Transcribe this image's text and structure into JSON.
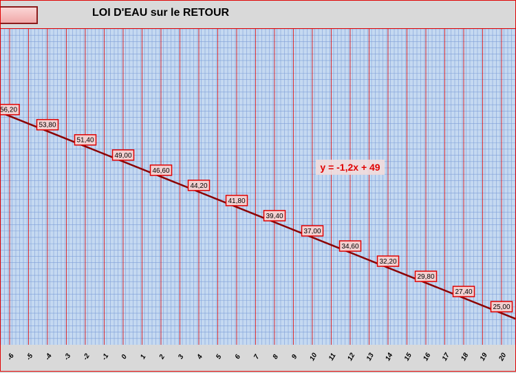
{
  "header": {
    "title": "LOI D'EAU sur le RETOUR"
  },
  "colors": {
    "line": "#8b0000",
    "plot_bg": "#c5d9f1",
    "major_grid": "#e00000",
    "minor_grid": "#7f9fd8",
    "label_bg": "#f2d0d0",
    "label_border": "#e00000",
    "equation": "#e00000"
  },
  "chart_data": {
    "type": "line",
    "title": "LOI D'EAU sur le RETOUR",
    "xlabel": "",
    "ylabel": "",
    "grid": true,
    "equation": "y = -1,2x + 49",
    "x_ticks": [
      "-6",
      "-5",
      "-4",
      "-3",
      "-2",
      "-1",
      "0",
      "1",
      "2",
      "3",
      "4",
      "5",
      "6",
      "7",
      "8",
      "9",
      "10",
      "11",
      "12",
      "13",
      "14",
      "15",
      "16",
      "17",
      "18",
      "19",
      "20"
    ],
    "x": [
      -6,
      -4,
      -2,
      0,
      2,
      4,
      6,
      8,
      10,
      12,
      14,
      16,
      18,
      20
    ],
    "values": [
      56.2,
      53.8,
      51.4,
      49.0,
      46.6,
      44.2,
      41.8,
      39.4,
      37.0,
      34.6,
      32.2,
      29.8,
      27.4,
      25.0
    ],
    "value_labels": [
      "56,20",
      "53,80",
      "51,40",
      "49,00",
      "46,60",
      "44,20",
      "41,80",
      "39,40",
      "37,00",
      "34,60",
      "32,20",
      "29,80",
      "27,40",
      "25,00"
    ],
    "slope": -1.2,
    "intercept": 49
  }
}
